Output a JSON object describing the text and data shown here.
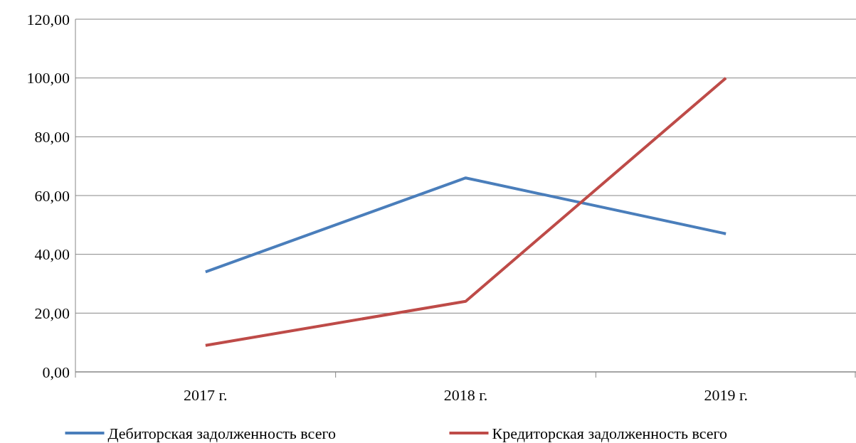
{
  "chart_data": {
    "type": "line",
    "categories": [
      "2017 г.",
      "2018 г.",
      "2019 г."
    ],
    "series": [
      {
        "name": "Дебиторская задолженность всего",
        "color": "#4a7ebb",
        "values": [
          34,
          66,
          47
        ]
      },
      {
        "name": "Кредиторская задолженность всего",
        "color": "#be4b48",
        "values": [
          9,
          24,
          100
        ]
      }
    ],
    "ylim": [
      0,
      120
    ],
    "yticks": [
      {
        "value": 0,
        "label": "0,00"
      },
      {
        "value": 20,
        "label": "20,00"
      },
      {
        "value": 40,
        "label": "40,00"
      },
      {
        "value": 60,
        "label": "60,00"
      },
      {
        "value": 80,
        "label": "80,00"
      },
      {
        "value": 100,
        "label": "100,00"
      },
      {
        "value": 120,
        "label": "120,00"
      }
    ],
    "grid": "y",
    "legend": "bottom",
    "marker": "none",
    "line_style": "solid"
  }
}
